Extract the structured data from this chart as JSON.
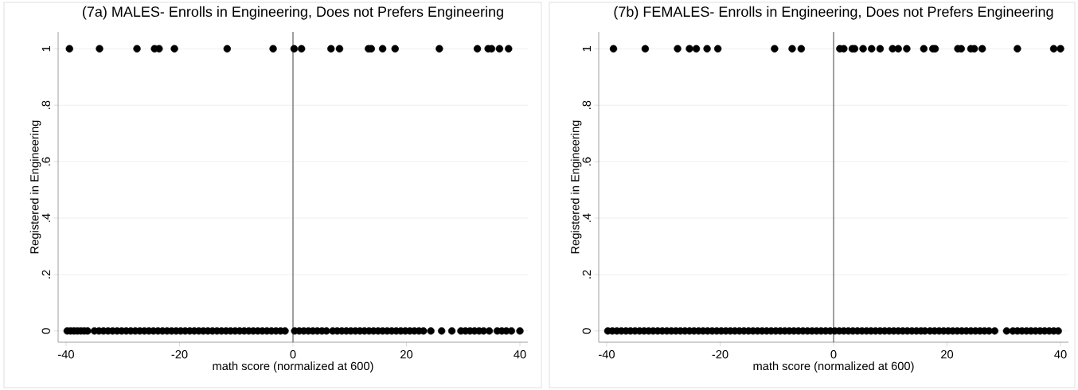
{
  "chart_data": [
    {
      "type": "scatter",
      "title": "(7a) MALES- Enrolls in Engineering, Does not Prefers Engineering",
      "xlabel": "math score (normalized at 600)",
      "ylabel": "Registered in Engineering",
      "xlim": [
        -41.4,
        41.4
      ],
      "ylim": [
        -0.04,
        1.06
      ],
      "xticks": [
        -40,
        -20,
        0,
        20,
        40
      ],
      "yticks": [
        0,
        {
          "value": 0.2,
          "label": ".2"
        },
        {
          "value": 0.4,
          "label": ".4"
        },
        {
          "value": 0.6,
          "label": ".6"
        },
        {
          "value": 0.8,
          "label": ".8"
        },
        1
      ],
      "grid": "y",
      "marker": "circle",
      "ref_lines": [
        {
          "axis": "x",
          "value": 0,
          "color": "#404040"
        }
      ],
      "series": [
        {
          "color": "#000000",
          "x": [
            -39.4,
            -34.1,
            -27.5,
            -24.4,
            -23.6,
            -20.9,
            -11.6,
            -3.5,
            0.2,
            1.5
          ],
          "values": [
            1,
            1,
            1,
            1,
            1,
            1,
            1,
            1,
            1,
            1
          ]
        },
        {
          "color": "#000000",
          "x": [
            6.7,
            8.2,
            13.3,
            13.8,
            15.8,
            18,
            25.8,
            32.5,
            34.4,
            35
          ],
          "values": [
            1,
            1,
            1,
            1,
            1,
            1,
            1,
            1,
            1,
            1
          ]
        },
        {
          "color": "#000000",
          "x": [
            36.4,
            38
          ],
          "values": [
            1,
            1
          ]
        },
        {
          "color": "#000000",
          "x": [
            -39.8,
            -39.2,
            -38.6,
            -38,
            -37.4,
            -36.8,
            -36.2
          ],
          "values": [
            0,
            0,
            0,
            0,
            0,
            0,
            0
          ]
        },
        {
          "color": "#000000",
          "x": [
            -35,
            -34.2,
            -33.4,
            -32.6,
            -31.8,
            -31,
            -30.2,
            -29.4,
            -28.6,
            -27.8
          ],
          "values": [
            0,
            0,
            0,
            0,
            0,
            0,
            0,
            0,
            0,
            0
          ]
        },
        {
          "color": "#000000",
          "x": [
            -27,
            -26.2,
            -25.4,
            -24.6,
            -23.8,
            -23,
            -22.2,
            -21.4,
            -20.6,
            -19.8
          ],
          "values": [
            0,
            0,
            0,
            0,
            0,
            0,
            0,
            0,
            0,
            0
          ]
        },
        {
          "color": "#000000",
          "x": [
            -19,
            -18.2,
            -17.4,
            -16.6,
            -15.8,
            -15,
            -14.2,
            -13.4,
            -12.6,
            -11.8
          ],
          "values": [
            0,
            0,
            0,
            0,
            0,
            0,
            0,
            0,
            0,
            0
          ]
        },
        {
          "color": "#000000",
          "x": [
            -11,
            -10.2,
            -9.4,
            -8.6,
            -7.8,
            -7,
            -6.2,
            -5.4,
            -4.6,
            -3.8
          ],
          "values": [
            0,
            0,
            0,
            0,
            0,
            0,
            0,
            0,
            0,
            0
          ]
        },
        {
          "color": "#000000",
          "x": [
            -3,
            -2.2,
            -1.4,
            0.3,
            1.1,
            1.9,
            2.7,
            3.5,
            4.3,
            5.1,
            5.9
          ],
          "values": [
            0,
            0,
            0,
            0,
            0,
            0,
            0,
            0,
            0,
            0,
            0
          ]
        },
        {
          "color": "#000000",
          "x": [
            7,
            7.8,
            8.6,
            9.4,
            10.2,
            11,
            11.8,
            12.6,
            13.4,
            14.2
          ],
          "values": [
            0,
            0,
            0,
            0,
            0,
            0,
            0,
            0,
            0,
            0
          ]
        },
        {
          "color": "#000000",
          "x": [
            15,
            15.8,
            16.6,
            17.4,
            18.2,
            19,
            19.8,
            20.6,
            21.4,
            22.2,
            23
          ],
          "values": [
            0,
            0,
            0,
            0,
            0,
            0,
            0,
            0,
            0,
            0,
            0
          ]
        },
        {
          "color": "#000000",
          "x": [
            24.3,
            26.2,
            28,
            29.6,
            30.4,
            31.2,
            32,
            32.8,
            33.6,
            34.6
          ],
          "values": [
            0,
            0,
            0,
            0,
            0,
            0,
            0,
            0,
            0,
            0
          ]
        },
        {
          "color": "#000000",
          "x": [
            36,
            36.8,
            37.6,
            38.5,
            40
          ],
          "values": [
            0,
            0,
            0,
            0,
            0
          ]
        }
      ]
    },
    {
      "type": "scatter",
      "title": "(7b) FEMALES- Enrolls in Engineering, Does not Prefers Engineering",
      "xlabel": "math score (normalized at 600)",
      "ylabel": "Registered in Engineering",
      "xlim": [
        -41.4,
        41.4
      ],
      "ylim": [
        -0.04,
        1.06
      ],
      "xticks": [
        -40,
        -20,
        0,
        20,
        40
      ],
      "yticks": [
        0,
        {
          "value": 0.2,
          "label": ".2"
        },
        {
          "value": 0.4,
          "label": ".4"
        },
        {
          "value": 0.6,
          "label": ".6"
        },
        {
          "value": 0.8,
          "label": ".8"
        },
        1
      ],
      "grid": "y",
      "marker": "circle",
      "ref_lines": [
        {
          "axis": "x",
          "value": 0,
          "color": "#404040"
        }
      ],
      "series": [
        {
          "color": "#000000",
          "x": [
            -38.8,
            -33.2,
            -27.5,
            -25.4,
            -24.2,
            -22.3,
            -20.4,
            -10.4,
            -7.3,
            -5.7
          ],
          "values": [
            1,
            1,
            1,
            1,
            1,
            1,
            1,
            1,
            1,
            1
          ]
        },
        {
          "color": "#000000",
          "x": [
            1.1,
            1.8,
            3.3,
            3.7,
            5.2,
            6.7,
            8.2,
            10.4,
            11.4,
            12.9
          ],
          "values": [
            1,
            1,
            1,
            1,
            1,
            1,
            1,
            1,
            1,
            1
          ]
        },
        {
          "color": "#000000",
          "x": [
            15.9,
            17.5,
            17.9,
            21.9,
            22.5,
            24.2,
            24.8,
            26.2,
            32.4,
            38.8,
            40
          ],
          "values": [
            1,
            1,
            1,
            1,
            1,
            1,
            1,
            1,
            1,
            1,
            1
          ]
        },
        {
          "color": "#000000",
          "x": [
            -39.8,
            -39,
            -38.2,
            -37.4,
            -36.6,
            -35.8
          ],
          "values": [
            0,
            0,
            0,
            0,
            0,
            0
          ]
        },
        {
          "color": "#000000",
          "x": [
            -35,
            -34.2,
            -33.4,
            -32.6,
            -31.8,
            -31,
            -30.2,
            -29.4,
            -28.6,
            -27.8
          ],
          "values": [
            0,
            0,
            0,
            0,
            0,
            0,
            0,
            0,
            0,
            0
          ]
        },
        {
          "color": "#000000",
          "x": [
            -27,
            -26.2,
            -25.4,
            -24.6,
            -23.8,
            -23,
            -22.2,
            -21.4,
            -20.6,
            -19.8
          ],
          "values": [
            0,
            0,
            0,
            0,
            0,
            0,
            0,
            0,
            0,
            0
          ]
        },
        {
          "color": "#000000",
          "x": [
            -19,
            -18.2,
            -17.4,
            -16.6,
            -15.8,
            -15,
            -14.2,
            -13.4,
            -12.6,
            -11.8
          ],
          "values": [
            0,
            0,
            0,
            0,
            0,
            0,
            0,
            0,
            0,
            0
          ]
        },
        {
          "color": "#000000",
          "x": [
            -11,
            -10.2,
            -9.4,
            -8.6,
            -7.8,
            -7,
            -6.2,
            -5.4,
            -4.6,
            -3.8
          ],
          "values": [
            0,
            0,
            0,
            0,
            0,
            0,
            0,
            0,
            0,
            0
          ]
        },
        {
          "color": "#000000",
          "x": [
            -3,
            -2.2,
            -1.4,
            -0.6,
            0.2,
            1,
            1.8,
            2.6,
            3.4,
            4.2
          ],
          "values": [
            0,
            0,
            0,
            0,
            0,
            0,
            0,
            0,
            0,
            0
          ]
        },
        {
          "color": "#000000",
          "x": [
            5,
            5.8,
            6.6,
            7.4,
            8.2,
            9,
            9.8,
            10.6,
            11.4,
            12.2
          ],
          "values": [
            0,
            0,
            0,
            0,
            0,
            0,
            0,
            0,
            0,
            0
          ]
        },
        {
          "color": "#000000",
          "x": [
            13,
            13.8,
            14.6,
            15.4,
            16.1,
            17,
            17.8,
            18.6,
            19.4,
            20.2
          ],
          "values": [
            0,
            0,
            0,
            0,
            0,
            0,
            0,
            0,
            0,
            0
          ]
        },
        {
          "color": "#000000",
          "x": [
            21,
            21.8,
            22.6,
            23.4,
            24.2,
            25,
            25.8,
            26.6,
            27.4,
            28.4,
            30.5
          ],
          "values": [
            0,
            0,
            0,
            0,
            0,
            0,
            0,
            0,
            0,
            0,
            0
          ]
        },
        {
          "color": "#000000",
          "x": [
            31.6,
            32.4,
            33.2,
            34,
            34.8,
            35.6,
            36.4,
            37.2,
            38,
            38.8,
            39.6
          ],
          "values": [
            0,
            0,
            0,
            0,
            0,
            0,
            0,
            0,
            0,
            0,
            0
          ]
        }
      ]
    }
  ]
}
